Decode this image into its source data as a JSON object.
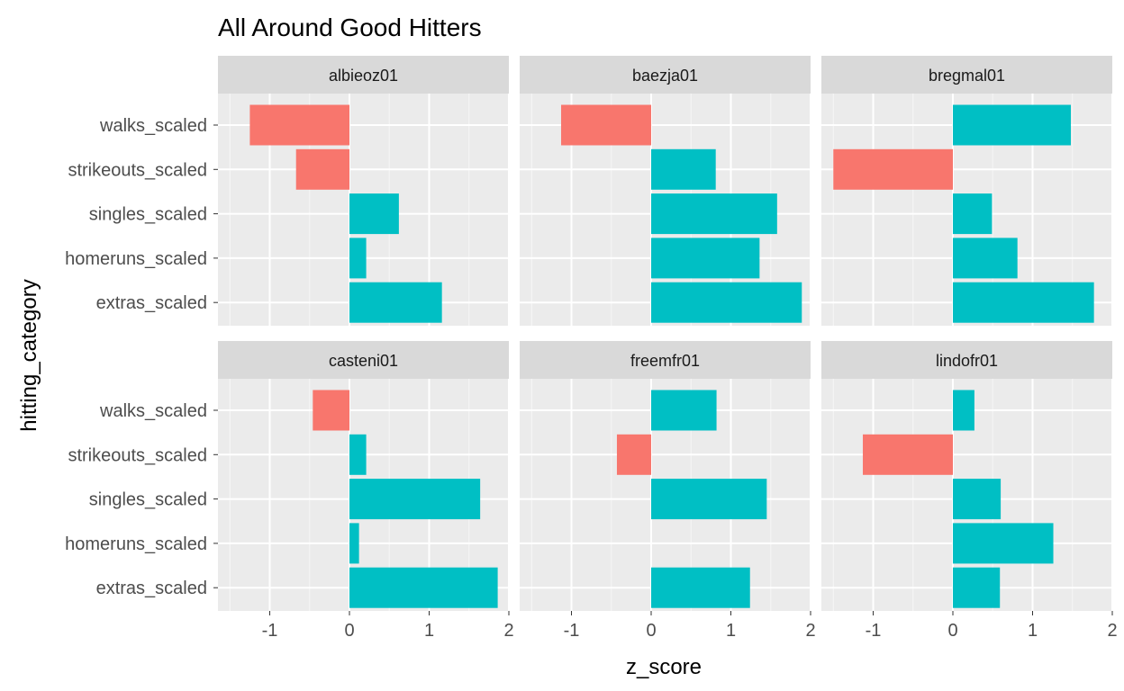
{
  "chart_data": {
    "type": "bar",
    "orientation": "horizontal",
    "title": "All Around Good Hitters",
    "xlabel": "z_score",
    "ylabel": "hitting_category",
    "categories": [
      "walks_scaled",
      "strikeouts_scaled",
      "singles_scaled",
      "homeruns_scaled",
      "extras_scaled"
    ],
    "xlim": [
      -1.65,
      2.0
    ],
    "x_ticks": [
      "-1",
      "0",
      "1",
      "2"
    ],
    "x_tick_values": [
      -1,
      0,
      1,
      2
    ],
    "grid": true,
    "facet_columns": 3,
    "colors": {
      "positive": "#00BFC4",
      "negative": "#F8766D",
      "panel_bg": "#EBEBEB",
      "strip_bg": "#D9D9D9",
      "grid": "#FFFFFF"
    },
    "panels": [
      {
        "name": "albieoz01",
        "values": [
          -1.25,
          -0.67,
          0.62,
          0.21,
          1.16
        ]
      },
      {
        "name": "baezja01",
        "values": [
          -1.13,
          0.81,
          1.58,
          1.36,
          1.89
        ]
      },
      {
        "name": "bregmal01",
        "values": [
          1.48,
          -1.5,
          0.49,
          0.81,
          1.77
        ]
      },
      {
        "name": "casteni01",
        "values": [
          -0.46,
          0.21,
          1.64,
          0.12,
          1.86
        ]
      },
      {
        "name": "freemfr01",
        "values": [
          0.82,
          -0.43,
          1.45,
          0.0,
          1.24
        ]
      },
      {
        "name": "lindofr01",
        "values": [
          0.27,
          -1.13,
          0.6,
          1.26,
          0.59
        ]
      }
    ]
  }
}
